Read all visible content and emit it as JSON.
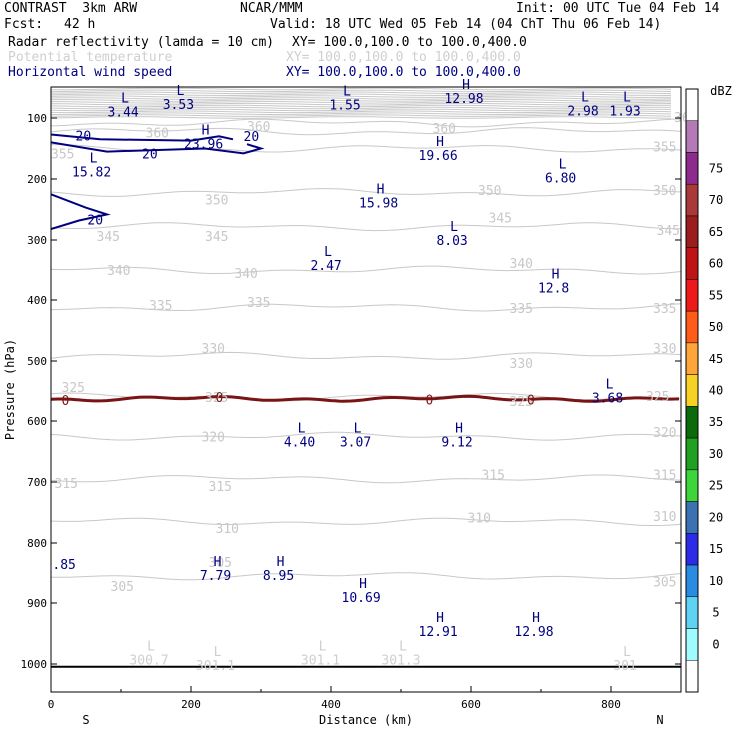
{
  "header": {
    "model": "CONTRAST  3km ARW",
    "center": "NCAR/MMM",
    "init": "Init: 00 UTC Tue 04 Feb 14",
    "fcst_label": "Fcst:",
    "fcst_value": "42 h",
    "valid": "Valid: 18 UTC Wed 05 Feb 14 (04 ChT Thu 06 Feb 14)",
    "fields": [
      {
        "name": "Radar reflectivity (lamda = 10 cm)",
        "xy": "XY= 100.0,100.0 to 100.0,400.0",
        "color": "#000000"
      },
      {
        "name": "Potential temperature",
        "xy": "XY= 100.0,100.0 to 100.0,400.0",
        "color": "#cfcfcf"
      },
      {
        "name": "Horizontal wind speed",
        "xy": "XY= 100.0,100.0 to 100.0,400.0",
        "color": "#000080"
      }
    ]
  },
  "chart_data": {
    "type": "cross-section",
    "xlabel": "Distance (km)",
    "ylabel": "Pressure (hPa)",
    "xlim": [
      0,
      900
    ],
    "ylim": [
      1050,
      50
    ],
    "x_ticks": [
      0,
      200,
      400,
      600,
      800
    ],
    "y_ticks": [
      100,
      200,
      300,
      400,
      500,
      600,
      700,
      800,
      900,
      1000
    ],
    "x_end_labels": {
      "left": "S",
      "right": "N"
    },
    "colorbar": {
      "unit": "dBZ",
      "levels": [
        "0",
        "5",
        "10",
        "15",
        "20",
        "25",
        "30",
        "35",
        "40",
        "45",
        "50",
        "55",
        "60",
        "65",
        "70",
        "75"
      ],
      "colors": [
        "#ffffff",
        "#9ffbff",
        "#5ed3f4",
        "#2a8ce0",
        "#2c2ce8",
        "#3a72b2",
        "#3cd53c",
        "#21a021",
        "#0b6b0b",
        "#f7d225",
        "#ffa63a",
        "#ff5c1a",
        "#ee1a1a",
        "#c01414",
        "#9b1d1d",
        "#aa3a3a",
        "#8d2b8d",
        "#b57ab5",
        "#ffffff"
      ]
    },
    "theta_labels": [
      {
        "t": "365",
        "x": 890,
        "p": 100
      },
      {
        "t": "360",
        "x": 135,
        "p": 125
      },
      {
        "t": "360",
        "x": 280,
        "p": 115
      },
      {
        "t": "360",
        "x": 545,
        "p": 118
      },
      {
        "t": "355",
        "x": 0,
        "p": 160
      },
      {
        "t": "355",
        "x": 860,
        "p": 148
      },
      {
        "t": "350",
        "x": 220,
        "p": 235
      },
      {
        "t": "350",
        "x": 610,
        "p": 220
      },
      {
        "t": "350",
        "x": 860,
        "p": 220
      },
      {
        "t": "345",
        "x": 65,
        "p": 295
      },
      {
        "t": "345",
        "x": 220,
        "p": 295
      },
      {
        "t": "345",
        "x": 625,
        "p": 265
      },
      {
        "t": "345",
        "x": 865,
        "p": 285
      },
      {
        "t": "340",
        "x": 80,
        "p": 352
      },
      {
        "t": "340",
        "x": 262,
        "p": 357
      },
      {
        "t": "340",
        "x": 655,
        "p": 340
      },
      {
        "t": "335",
        "x": 140,
        "p": 410
      },
      {
        "t": "335",
        "x": 280,
        "p": 405
      },
      {
        "t": "335",
        "x": 655,
        "p": 415
      },
      {
        "t": "335",
        "x": 860,
        "p": 415
      },
      {
        "t": "330",
        "x": 215,
        "p": 480
      },
      {
        "t": "330",
        "x": 655,
        "p": 505
      },
      {
        "t": "330",
        "x": 860,
        "p": 480
      },
      {
        "t": "325",
        "x": 15,
        "p": 545
      },
      {
        "t": "325",
        "x": 220,
        "p": 562
      },
      {
        "t": "325",
        "x": 655,
        "p": 568
      },
      {
        "t": "325",
        "x": 850,
        "p": 560
      },
      {
        "t": "320",
        "x": 215,
        "p": 627
      },
      {
        "t": "320",
        "x": 860,
        "p": 620
      },
      {
        "t": "315",
        "x": 5,
        "p": 703
      },
      {
        "t": "315",
        "x": 225,
        "p": 708
      },
      {
        "t": "315",
        "x": 615,
        "p": 689
      },
      {
        "t": "315",
        "x": 860,
        "p": 689
      },
      {
        "t": "310",
        "x": 235,
        "p": 777
      },
      {
        "t": "310",
        "x": 595,
        "p": 760
      },
      {
        "t": "310",
        "x": 860,
        "p": 757
      },
      {
        "t": "305",
        "x": 85,
        "p": 873
      },
      {
        "t": "305",
        "x": 225,
        "p": 833
      },
      {
        "t": "305",
        "x": 860,
        "p": 866
      }
    ],
    "wind_labels": [
      {
        "t": "20",
        "x": 35,
        "p": 130
      },
      {
        "t": "20",
        "x": 130,
        "p": 160
      },
      {
        "t": "20",
        "x": 275,
        "p": 131
      },
      {
        "t": "20",
        "x": 52,
        "p": 268
      },
      {
        "t": "0",
        "x": 15,
        "p": 567
      },
      {
        "t": "0",
        "x": 235,
        "p": 562
      },
      {
        "t": "0",
        "x": 535,
        "p": 566
      },
      {
        "t": "0",
        "x": 680,
        "p": 566
      },
      {
        "t": ".85",
        "x": 2,
        "p": 837
      }
    ],
    "extrema": [
      {
        "kind": "L",
        "value": "3.44",
        "x": 103,
        "p": 75,
        "color": "#000080"
      },
      {
        "kind": "L",
        "value": "3.53",
        "x": 182,
        "p": 63,
        "color": "#000080"
      },
      {
        "kind": "L",
        "value": "1.55",
        "x": 420,
        "p": 64,
        "color": "#000080"
      },
      {
        "kind": "H",
        "value": "12.98",
        "x": 590,
        "p": 53,
        "color": "#000080"
      },
      {
        "kind": "L",
        "value": "2.98",
        "x": 760,
        "p": 73,
        "color": "#000080"
      },
      {
        "kind": "L",
        "value": "1.93",
        "x": 820,
        "p": 73,
        "color": "#000080"
      },
      {
        "kind": "H",
        "value": "23.96",
        "x": 218,
        "p": 127,
        "color": "#000080"
      },
      {
        "kind": "H",
        "value": "19.66",
        "x": 553,
        "p": 146,
        "color": "#000080"
      },
      {
        "kind": "L",
        "value": "15.82",
        "x": 58,
        "p": 173,
        "color": "#000080"
      },
      {
        "kind": "L",
        "value": "6.80",
        "x": 728,
        "p": 183,
        "color": "#000080"
      },
      {
        "kind": "H",
        "value": "15.98",
        "x": 468,
        "p": 224,
        "color": "#000080"
      },
      {
        "kind": "L",
        "value": "8.03",
        "x": 573,
        "p": 285,
        "color": "#000080"
      },
      {
        "kind": "L",
        "value": "2.47",
        "x": 393,
        "p": 327,
        "color": "#000080"
      },
      {
        "kind": "H",
        "value": "12.8",
        "x": 718,
        "p": 364,
        "color": "#000080"
      },
      {
        "kind": "L",
        "value": "3.68",
        "x": 795,
        "p": 546,
        "color": "#000080"
      },
      {
        "kind": "L",
        "value": "4.40",
        "x": 355,
        "p": 619,
        "color": "#000080"
      },
      {
        "kind": "L",
        "value": "3.07",
        "x": 435,
        "p": 619,
        "color": "#000080"
      },
      {
        "kind": "H",
        "value": "9.12",
        "x": 580,
        "p": 619,
        "color": "#000080"
      },
      {
        "kind": "H",
        "value": "7.79",
        "x": 235,
        "p": 838,
        "color": "#000080"
      },
      {
        "kind": "H",
        "value": "8.95",
        "x": 325,
        "p": 838,
        "color": "#000080"
      },
      {
        "kind": "H",
        "value": "10.69",
        "x": 443,
        "p": 875,
        "color": "#000080"
      },
      {
        "kind": "H",
        "value": "12.91",
        "x": 553,
        "p": 931,
        "color": "#000080"
      },
      {
        "kind": "H",
        "value": "12.98",
        "x": 690,
        "p": 931,
        "color": "#000080"
      },
      {
        "kind": "L",
        "value": "300.7",
        "x": 140,
        "p": 978,
        "color": "#cfcfcf"
      },
      {
        "kind": "L",
        "value": "301.1",
        "x": 235,
        "p": 987,
        "color": "#cfcfcf"
      },
      {
        "kind": "L",
        "value": "301.1",
        "x": 385,
        "p": 978,
        "color": "#cfcfcf"
      },
      {
        "kind": "L",
        "value": "301.3",
        "x": 500,
        "p": 978,
        "color": "#cfcfcf"
      },
      {
        "kind": "L",
        "value": "301",
        "x": 820,
        "p": 987,
        "color": "#cfcfcf"
      }
    ],
    "theta_lines": [
      {
        "p": 357,
        "wavy": true
      },
      {
        "p": 347,
        "wavy": true
      },
      {
        "p": 338,
        "wavy": true
      },
      {
        "p": 333,
        "wavy": true
      },
      {
        "p": 332,
        "wavy": true
      },
      {
        "p": 330,
        "wavy": true
      },
      {
        "p": 320,
        "wavy": true
      },
      {
        "p": 316,
        "wavy": true
      },
      {
        "p": 312,
        "wavy": true
      }
    ],
    "colors": {
      "theta": "#c8c8c8",
      "wind": "#000080",
      "reflectivity_zero": "#7a1414",
      "ground": "#000000"
    }
  }
}
